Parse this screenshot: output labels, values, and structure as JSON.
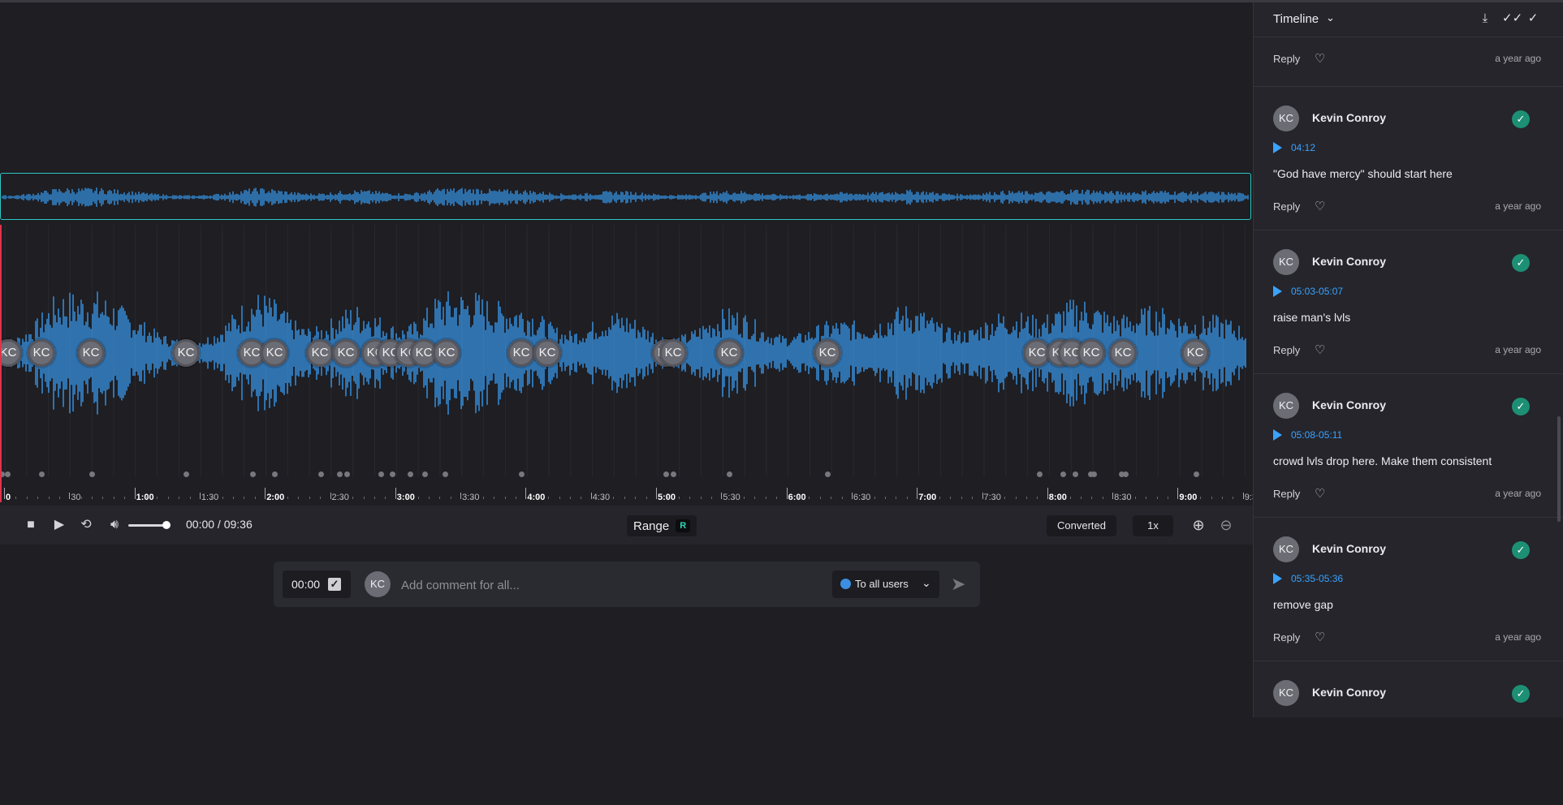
{
  "player": {
    "marker_initials": "KC",
    "time_display": "00:00 / 09:36",
    "range_label": "Range",
    "range_key": "R",
    "converted_label": "Converted",
    "speed_label": "1x",
    "ruler_labels": [
      "0",
      "30",
      "1:00",
      "1:30",
      "2:00",
      "2:30",
      "3:00",
      "3:30",
      "4:00",
      "4:30",
      "5:00",
      "5:30",
      "6:00",
      "6:30",
      "7:00",
      "7:30",
      "8:00",
      "8:30",
      "9:00",
      "9:3"
    ],
    "colors": {
      "waveform": "#3aa3ff",
      "overview_border": "#2fc6c4",
      "playhead": "#e0324a"
    }
  },
  "comment_bar": {
    "timestamp": "00:00",
    "avatar_initials": "KC",
    "placeholder": "Add comment for all...",
    "audience_label": "To all users"
  },
  "sidebar": {
    "title": "Timeline",
    "top_reply": {
      "reply_label": "Reply",
      "time_ago": "a year ago"
    },
    "comments": [
      {
        "initials": "KC",
        "author": "Kevin Conroy",
        "timecode": "04:12",
        "text": "\"God have mercy\" should start here",
        "reply_label": "Reply",
        "time_ago": "a year ago"
      },
      {
        "initials": "KC",
        "author": "Kevin Conroy",
        "timecode": "05:03-05:07",
        "text": "raise man's lvls",
        "reply_label": "Reply",
        "time_ago": "a year ago"
      },
      {
        "initials": "KC",
        "author": "Kevin Conroy",
        "timecode": "05:08-05:11",
        "text": "crowd lvls drop here. Make them consistent",
        "reply_label": "Reply",
        "time_ago": "a year ago"
      },
      {
        "initials": "KC",
        "author": "Kevin Conroy",
        "timecode": "05:35-05:36",
        "text": "remove gap",
        "reply_label": "Reply",
        "time_ago": "a year ago"
      },
      {
        "initials": "KC",
        "author": "Kevin Conroy"
      }
    ]
  }
}
